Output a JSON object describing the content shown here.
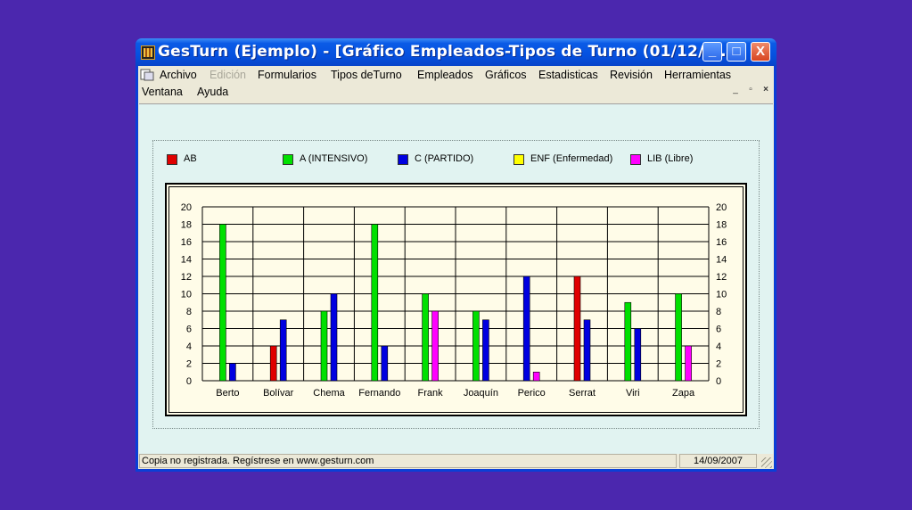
{
  "window": {
    "title": "GesTurn (Ejemplo) - [Gráfico Empleados-Tipos de Turno (01/12/2...",
    "minimize": "_",
    "maximize": "□",
    "close": "X"
  },
  "menu": {
    "items": [
      "Archivo",
      "Edición",
      "Formularios",
      "Tipos deTurno",
      "Empleados",
      "Gráficos",
      "Estadisticas",
      "Revisión",
      "Herramientas",
      "Ventana",
      "Ayuda"
    ],
    "mdi_minimize": "_",
    "mdi_restore": "▫",
    "mdi_close": "×"
  },
  "chart_data": {
    "type": "bar",
    "categories": [
      "Berto",
      "Bolívar",
      "Chema",
      "Fernando",
      "Frank",
      "Joaquín",
      "Perico",
      "Serrat",
      "Viri",
      "Zapa"
    ],
    "series": [
      {
        "name": "AB",
        "color": "#e00000",
        "values": [
          0,
          4,
          0,
          0,
          0,
          0,
          0,
          12,
          0,
          0
        ]
      },
      {
        "name": "A  (INTENSIVO)",
        "color": "#00e000",
        "values": [
          18,
          0,
          8,
          18,
          10,
          8,
          0,
          0,
          9,
          10
        ]
      },
      {
        "name": "C  (PARTIDO)",
        "color": "#0000e0",
        "values": [
          2,
          7,
          10,
          4,
          0,
          7,
          12,
          7,
          6,
          0
        ]
      },
      {
        "name": "ENF  (Enfermedad)",
        "color": "#ffff00",
        "values": [
          0,
          0,
          0,
          0,
          0,
          0,
          0,
          0,
          0,
          0
        ]
      },
      {
        "name": "LIB  (Libre)",
        "color": "#ff00ff",
        "values": [
          0,
          0,
          0,
          0,
          8,
          0,
          1,
          0,
          0,
          4
        ]
      }
    ],
    "ylim": [
      0,
      20
    ],
    "yticks": [
      0,
      2,
      4,
      6,
      8,
      10,
      12,
      14,
      16,
      18,
      20
    ],
    "grid": true,
    "legend_position": "top"
  },
  "status": {
    "left": "Copia no registrada. Regístrese en www.gesturn.com",
    "date": "14/09/2007"
  }
}
